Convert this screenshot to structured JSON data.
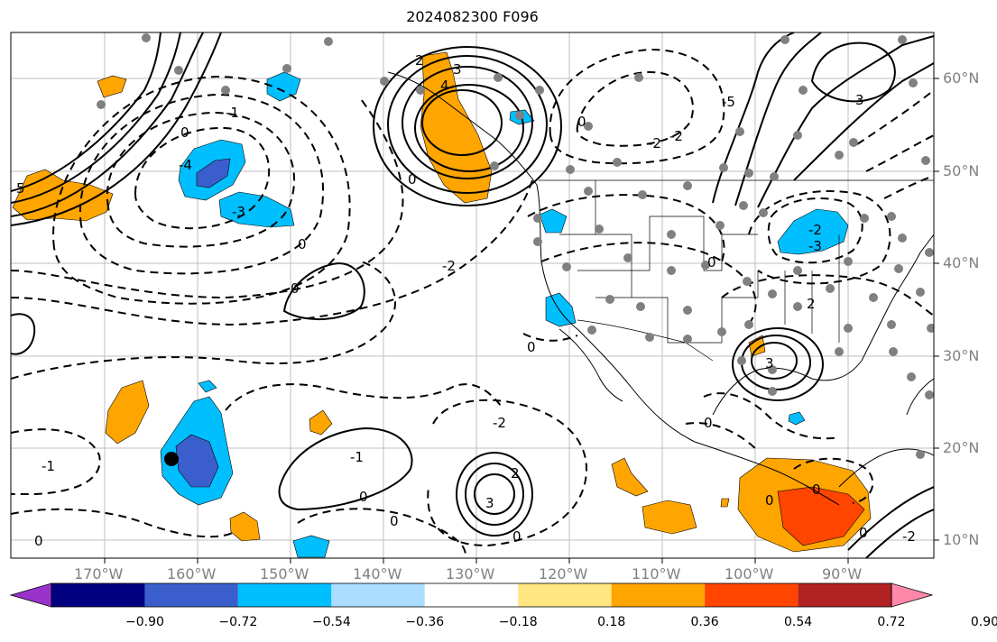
{
  "title": "2024082300 F096",
  "lat_labels": [
    "60°N",
    "50°N",
    "40°N",
    "30°N",
    "20°N",
    "10°N"
  ],
  "lon_labels": [
    "170°W",
    "160°W",
    "150°W",
    "140°W",
    "130°W",
    "120°W",
    "110°W",
    "100°W",
    "90°W"
  ],
  "colorbar": {
    "ticks": [
      "−0.90",
      "−0.72",
      "−0.54",
      "−0.36",
      "−0.18",
      "0.18",
      "0.36",
      "0.54",
      "0.72",
      "0.90"
    ],
    "colors": [
      "#9933cc",
      "#000080",
      "#3a5fcd",
      "#00bfff",
      "#aaddff",
      "#ffffff",
      "#ffe680",
      "#ffa500",
      "#ff4500",
      "#b22222",
      "#ff88aa"
    ]
  },
  "contour_labels": [
    "2",
    "3",
    "4",
    "5",
    "0",
    "-2",
    "-3",
    "-4",
    "-5",
    "1",
    "2",
    "-1",
    "0",
    "3",
    "-2",
    "-2",
    "-3",
    "-1",
    "0",
    "-2",
    "1",
    "2",
    "3",
    "-1",
    "0",
    "-1",
    "0",
    "1",
    "-3",
    "-4",
    "-2",
    "1",
    "0",
    "3"
  ],
  "colors": {
    "positive_anomaly": "#ffa500",
    "strong_positive": "#ff4500",
    "negative_anomaly": "#00bfff",
    "strong_negative": "#3a5fcd",
    "station": "#808080"
  }
}
